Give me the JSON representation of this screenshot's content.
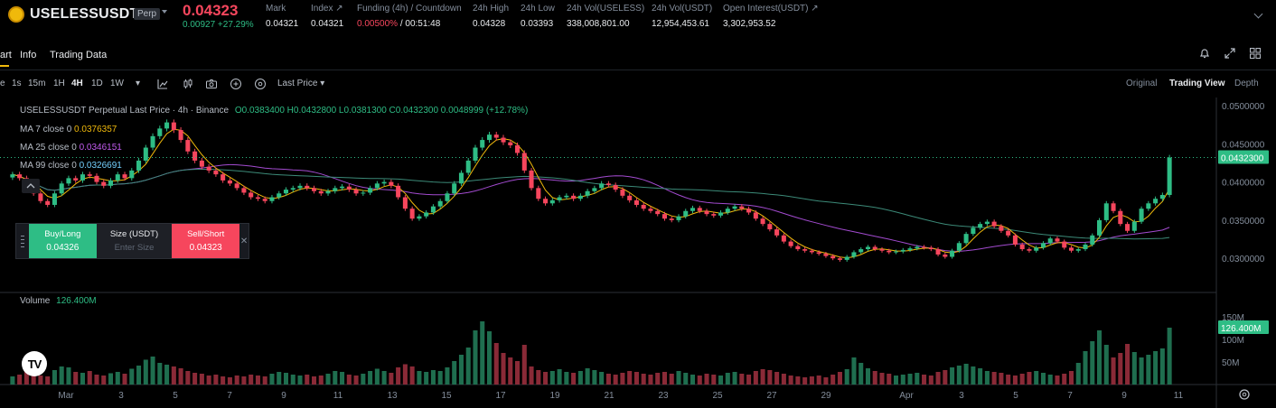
{
  "header": {
    "symbol": "USELESSUSDT",
    "badge": "Perp",
    "last_price": "0.04323",
    "change": "0.00927 +27.29%",
    "stats": [
      {
        "label": "Mark",
        "value": "0.04321"
      },
      {
        "label": "Index",
        "value": "0.04321"
      },
      {
        "label": "Funding (4h) / Countdown",
        "value_rate": "0.00500%",
        "value_time": " / 00:51:48"
      },
      {
        "label": "24h High",
        "value": "0.04328"
      },
      {
        "label": "24h Low",
        "value": "0.03393"
      },
      {
        "label": "24h Vol(USELESS)",
        "value": "338,008,801.00"
      },
      {
        "label": "24h Vol(USDT)",
        "value": "12,954,453.61"
      },
      {
        "label": "Open Interest(USDT)",
        "value": "3,302,953.52"
      }
    ]
  },
  "tabs": {
    "chart": "art",
    "info": "Info",
    "trading_data": "Trading Data"
  },
  "toolbar": {
    "intervals": [
      "e",
      "1s",
      "15m",
      "1H",
      "4H",
      "1D",
      "1W"
    ],
    "selected_interval": "4H",
    "price_source": "Last Price",
    "views": [
      "Original",
      "Trading View",
      "Depth"
    ],
    "selected_view": "Trading View"
  },
  "legend": {
    "title": "USELESSUSDT Perpetual Last Price · 4h · Binance",
    "ohlc": "O0.0383400 H0.0432800 L0.0381300 C0.0432300 0.0048999 (+12.78%)",
    "ma7_label": "MA 7 close 0",
    "ma7_value": "0.0376357",
    "ma25_label": "MA 25 close 0",
    "ma25_value": "0.0346151",
    "ma99_label": "MA 99 close 0",
    "ma99_value": "0.0326691",
    "volume_label": "Volume",
    "volume_value": "126.400M"
  },
  "order_panel": {
    "buy_label": "Buy/Long",
    "buy_price": "0.04326",
    "size_label": "Size (USDT)",
    "size_placeholder": "Enter Size",
    "sell_label": "Sell/Short",
    "sell_price": "0.04323"
  },
  "colors": {
    "up": "#2ebd85",
    "down": "#f6465d",
    "ma7": "#f0b90b",
    "ma25": "#a34bd0",
    "ma99": "#2ebd85",
    "accent": "#f0b90b"
  },
  "chart_data": {
    "type": "candlestick",
    "price_axis_ticks": [
      "0.0500000",
      "0.0450000",
      "0.0400000",
      "0.0350000",
      "0.0300000"
    ],
    "price_axis_values": [
      0.05,
      0.045,
      0.04,
      0.035,
      0.03
    ],
    "current_price_label": "0.0432300",
    "volume_axis_ticks": [
      "150M",
      "100M",
      "50M"
    ],
    "volume_axis_values": [
      150,
      100,
      50
    ],
    "current_volume_label": "126.400M",
    "x_ticks": [
      "Mar",
      "3",
      "5",
      "7",
      "9",
      "11",
      "13",
      "15",
      "17",
      "19",
      "21",
      "23",
      "25",
      "27",
      "29",
      "Apr",
      "3",
      "5",
      "7",
      "9",
      "11"
    ],
    "closes": [
      0.041,
      0.0405,
      0.0395,
      0.0385,
      0.0375,
      0.037,
      0.0385,
      0.0398,
      0.0405,
      0.0402,
      0.041,
      0.0408,
      0.04,
      0.0395,
      0.0402,
      0.041,
      0.0405,
      0.0415,
      0.0428,
      0.0445,
      0.046,
      0.047,
      0.0478,
      0.0468,
      0.0455,
      0.044,
      0.0428,
      0.042,
      0.0415,
      0.041,
      0.0402,
      0.0398,
      0.0392,
      0.0386,
      0.038,
      0.0378,
      0.0375,
      0.038,
      0.0385,
      0.039,
      0.0392,
      0.0395,
      0.0392,
      0.0388,
      0.0385,
      0.0388,
      0.0392,
      0.0394,
      0.039,
      0.0385,
      0.0386,
      0.0392,
      0.0398,
      0.04,
      0.0395,
      0.038,
      0.0365,
      0.0352,
      0.0355,
      0.036,
      0.0368,
      0.0375,
      0.0385,
      0.0398,
      0.0412,
      0.0428,
      0.0445,
      0.0455,
      0.0462,
      0.0458,
      0.0452,
      0.0448,
      0.0438,
      0.0415,
      0.0392,
      0.0378,
      0.0372,
      0.0376,
      0.038,
      0.0382,
      0.0378,
      0.0382,
      0.0388,
      0.0392,
      0.0398,
      0.0396,
      0.039,
      0.0382,
      0.0376,
      0.037,
      0.0365,
      0.0362,
      0.0358,
      0.0352,
      0.035,
      0.0355,
      0.0362,
      0.0366,
      0.0362,
      0.0358,
      0.0356,
      0.036,
      0.0365,
      0.0368,
      0.0365,
      0.036,
      0.0352,
      0.0345,
      0.0338,
      0.033,
      0.0322,
      0.0316,
      0.0312,
      0.031,
      0.0308,
      0.0306,
      0.0303,
      0.03,
      0.0298,
      0.0302,
      0.0308,
      0.0312,
      0.0315,
      0.0312,
      0.031,
      0.0308,
      0.0309,
      0.0311,
      0.0313,
      0.0315,
      0.0314,
      0.0312,
      0.0305,
      0.0302,
      0.031,
      0.032,
      0.0332,
      0.034,
      0.0345,
      0.0348,
      0.0342,
      0.0336,
      0.033,
      0.0318,
      0.0312,
      0.031,
      0.0314,
      0.032,
      0.0326,
      0.0322,
      0.0314,
      0.031,
      0.0312,
      0.0318,
      0.033,
      0.035,
      0.0372,
      0.0362,
      0.0345,
      0.0336,
      0.0348,
      0.0365,
      0.0372,
      0.0378,
      0.0383,
      0.0432
    ],
    "volumes": [
      18,
      22,
      30,
      25,
      20,
      18,
      32,
      40,
      38,
      28,
      26,
      30,
      22,
      20,
      25,
      28,
      24,
      35,
      42,
      55,
      62,
      48,
      44,
      40,
      36,
      30,
      26,
      24,
      20,
      22,
      18,
      16,
      20,
      18,
      22,
      20,
      18,
      24,
      28,
      26,
      22,
      20,
      22,
      18,
      20,
      24,
      30,
      28,
      22,
      20,
      24,
      30,
      35,
      30,
      26,
      38,
      45,
      40,
      30,
      28,
      32,
      30,
      38,
      52,
      66,
      82,
      120,
      140,
      118,
      92,
      70,
      60,
      52,
      88,
      40,
      32,
      28,
      30,
      34,
      28,
      26,
      30,
      36,
      32,
      28,
      24,
      22,
      26,
      30,
      28,
      24,
      22,
      26,
      28,
      24,
      30,
      26,
      22,
      20,
      24,
      22,
      20,
      26,
      28,
      24,
      22,
      30,
      34,
      32,
      28,
      24,
      20,
      18,
      16,
      18,
      20,
      16,
      22,
      28,
      34,
      60,
      48,
      36,
      30,
      26,
      24,
      20,
      22,
      24,
      26,
      22,
      20,
      28,
      32,
      38,
      42,
      46,
      40,
      36,
      30,
      28,
      26,
      22,
      20,
      24,
      28,
      30,
      26,
      22,
      20,
      24,
      30,
      48,
      74,
      96,
      120,
      88,
      60,
      70,
      90,
      72,
      60,
      66,
      74,
      80,
      126
    ]
  }
}
